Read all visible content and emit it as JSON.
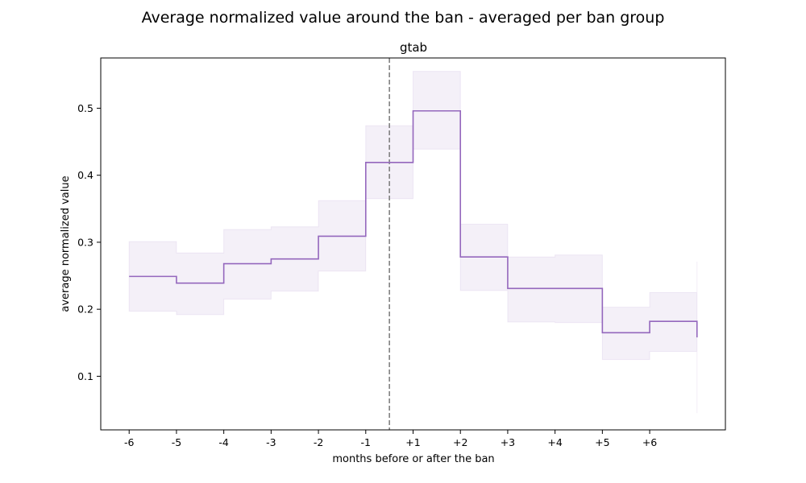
{
  "chart_data": {
    "type": "line",
    "step": "post",
    "suptitle": "Average normalized value around the ban - averaged per ban group",
    "title": "gtab",
    "xlabel": "months before or after the ban",
    "ylabel": "average normalized value",
    "x_ticks": [
      "-6",
      "-5",
      "-4",
      "-3",
      "-2",
      "-1",
      "+1",
      "+2",
      "+3",
      "+4",
      "+5",
      "+6"
    ],
    "y_ticks": [
      0.1,
      0.2,
      0.3,
      0.4,
      0.5
    ],
    "xlim": [
      -0.6,
      12.6
    ],
    "ylim": [
      0.02,
      0.575
    ],
    "ban_marker_x": 5.5,
    "series": [
      {
        "x": [
          0,
          1,
          2,
          3,
          4,
          5,
          6,
          7,
          8,
          9,
          10,
          11,
          12
        ],
        "values": [
          0.249,
          0.239,
          0.268,
          0.275,
          0.309,
          0.419,
          0.496,
          0.278,
          0.231,
          0.231,
          0.165,
          0.182,
          0.158
        ],
        "ci_lower": [
          0.197,
          0.192,
          0.215,
          0.227,
          0.257,
          0.365,
          0.439,
          0.228,
          0.181,
          0.18,
          0.125,
          0.137,
          0.045
        ],
        "ci_upper": [
          0.301,
          0.284,
          0.319,
          0.323,
          0.362,
          0.474,
          0.555,
          0.327,
          0.278,
          0.281,
          0.203,
          0.225,
          0.271
        ]
      }
    ],
    "colors": {
      "line": "#9467bd",
      "band": "#9467bd",
      "ban_marker": "#808080"
    },
    "grid": false
  }
}
